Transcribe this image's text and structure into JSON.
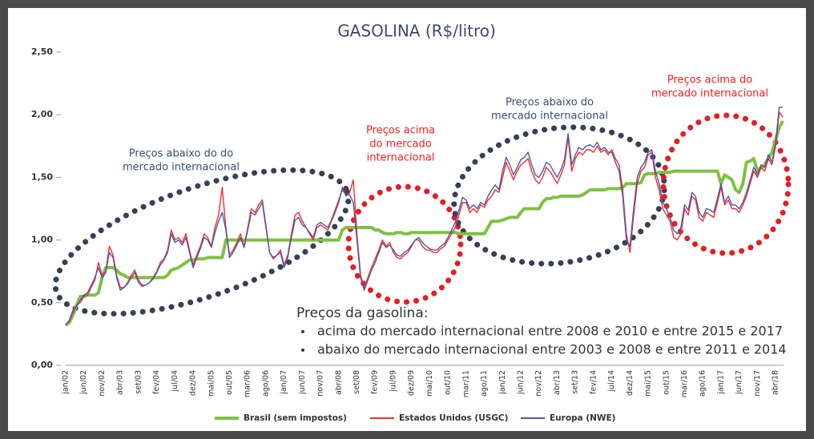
{
  "chart_data": {
    "type": "line",
    "title": "GASOLINA (R$/litro)",
    "categories": [
      "jan/02",
      null,
      null,
      null,
      null,
      "jun/02",
      null,
      null,
      null,
      null,
      "nov/02",
      null,
      null,
      null,
      null,
      "abr/03",
      null,
      null,
      null,
      null,
      "set/03",
      null,
      null,
      null,
      null,
      "fev/04",
      null,
      null,
      null,
      null,
      "jul/04",
      null,
      null,
      null,
      null,
      "dez/04",
      null,
      null,
      null,
      null,
      "mai/05",
      null,
      null,
      null,
      null,
      "out/05",
      null,
      null,
      null,
      null,
      "mar/06",
      null,
      null,
      null,
      null,
      "ago/06",
      null,
      null,
      null,
      null,
      "jan/07",
      null,
      null,
      null,
      null,
      "jun/07",
      null,
      null,
      null,
      null,
      "nov/07",
      null,
      null,
      null,
      null,
      "abr/08",
      null,
      null,
      null,
      null,
      "set/08",
      null,
      null,
      null,
      null,
      "fev/09",
      null,
      null,
      null,
      null,
      "jul/09",
      null,
      null,
      null,
      null,
      "dez/09",
      null,
      null,
      null,
      null,
      "mai/10",
      null,
      null,
      null,
      null,
      "out/10",
      null,
      null,
      null,
      null,
      "mar/11",
      null,
      null,
      null,
      null,
      "ago/11",
      null,
      null,
      null,
      null,
      "jan/12",
      null,
      null,
      null,
      null,
      "jun/12",
      null,
      null,
      null,
      null,
      "nov/12",
      null,
      null,
      null,
      null,
      "abr/13",
      null,
      null,
      null,
      null,
      "set/13",
      null,
      null,
      null,
      null,
      "fev/14",
      null,
      null,
      null,
      null,
      "jul/14",
      null,
      null,
      null,
      null,
      "dez/14",
      null,
      null,
      null,
      null,
      "mai/15",
      null,
      null,
      null,
      null,
      "out/15",
      null,
      null,
      null,
      null,
      "mar/16",
      null,
      null,
      null,
      null,
      "ago/16",
      null,
      null,
      null,
      null,
      "jan/17",
      null,
      null,
      null,
      null,
      "jun/17",
      null,
      null,
      null,
      null,
      "nov/17",
      null,
      null,
      null,
      null,
      "abr/18",
      null,
      null
    ],
    "series": [
      {
        "name": "Brasil (sem impostos)",
        "color": "#7dc242",
        "width": 4,
        "values": [
          0.32,
          0.34,
          0.4,
          0.48,
          0.55,
          0.55,
          0.56,
          0.56,
          0.56,
          0.58,
          0.7,
          0.78,
          0.78,
          0.78,
          0.76,
          0.73,
          0.72,
          0.7,
          0.7,
          0.7,
          0.7,
          0.7,
          0.7,
          0.7,
          0.7,
          0.7,
          0.7,
          0.7,
          0.72,
          0.76,
          0.77,
          0.78,
          0.8,
          0.82,
          0.84,
          0.84,
          0.85,
          0.85,
          0.85,
          0.86,
          0.86,
          0.86,
          0.86,
          0.86,
          1.0,
          1.0,
          1.0,
          1.0,
          1.0,
          1.0,
          1.0,
          1.0,
          1.0,
          1.0,
          1.0,
          1.0,
          1.0,
          1.0,
          1.0,
          1.0,
          1.0,
          1.0,
          1.0,
          1.0,
          1.0,
          1.0,
          1.0,
          1.0,
          1.0,
          1.0,
          1.0,
          1.0,
          1.0,
          1.0,
          1.0,
          1.0,
          1.08,
          1.1,
          1.1,
          1.1,
          1.1,
          1.1,
          1.1,
          1.1,
          1.1,
          1.08,
          1.08,
          1.06,
          1.05,
          1.05,
          1.05,
          1.06,
          1.06,
          1.05,
          1.05,
          1.06,
          1.06,
          1.06,
          1.06,
          1.06,
          1.06,
          1.06,
          1.06,
          1.06,
          1.06,
          1.06,
          1.06,
          1.06,
          1.05,
          1.05,
          1.05,
          1.05,
          1.05,
          1.05,
          1.05,
          1.05,
          1.1,
          1.15,
          1.15,
          1.15,
          1.16,
          1.17,
          1.18,
          1.18,
          1.18,
          1.22,
          1.25,
          1.25,
          1.25,
          1.25,
          1.25,
          1.3,
          1.33,
          1.33,
          1.34,
          1.34,
          1.35,
          1.35,
          1.35,
          1.35,
          1.35,
          1.35,
          1.36,
          1.38,
          1.4,
          1.4,
          1.4,
          1.4,
          1.4,
          1.41,
          1.41,
          1.41,
          1.41,
          1.42,
          1.45,
          1.45,
          1.45,
          1.45,
          1.46,
          1.52,
          1.53,
          1.53,
          1.53,
          1.54,
          1.54,
          1.54,
          1.54,
          1.55,
          1.55,
          1.55,
          1.55,
          1.55,
          1.55,
          1.55,
          1.55,
          1.55,
          1.55,
          1.55,
          1.55,
          1.55,
          1.45,
          1.52,
          1.5,
          1.48,
          1.4,
          1.38,
          1.45,
          1.62,
          1.63,
          1.65,
          1.55,
          1.58,
          1.6,
          1.65,
          1.7,
          1.8,
          1.9,
          1.95
        ]
      },
      {
        "name": "Estados Unidos (USGC)",
        "color": "#ff2a2a",
        "width": 1.4,
        "values": [
          0.33,
          0.35,
          0.42,
          0.48,
          0.5,
          0.55,
          0.56,
          0.62,
          0.68,
          0.82,
          0.72,
          0.75,
          0.95,
          0.88,
          0.72,
          0.62,
          0.62,
          0.66,
          0.72,
          0.76,
          0.68,
          0.64,
          0.64,
          0.66,
          0.7,
          0.75,
          0.82,
          0.85,
          0.92,
          1.08,
          1.0,
          1.02,
          0.98,
          1.05,
          0.92,
          0.8,
          0.88,
          0.95,
          1.05,
          1.02,
          0.95,
          1.1,
          1.2,
          1.42,
          1.1,
          0.88,
          0.92,
          0.98,
          1.05,
          0.95,
          1.1,
          1.25,
          1.22,
          1.28,
          1.32,
          1.12,
          0.9,
          0.85,
          0.88,
          0.92,
          0.8,
          0.88,
          1.05,
          1.2,
          1.22,
          1.15,
          1.1,
          1.05,
          1.0,
          1.1,
          1.12,
          1.1,
          1.08,
          1.15,
          1.22,
          1.3,
          1.42,
          1.35,
          1.38,
          1.48,
          1.05,
          0.72,
          0.62,
          0.7,
          0.78,
          0.85,
          0.92,
          1.0,
          0.95,
          0.98,
          0.9,
          0.86,
          0.85,
          0.88,
          0.9,
          0.95,
          1.0,
          1.0,
          0.95,
          0.92,
          0.92,
          0.9,
          0.9,
          0.93,
          0.95,
          1.0,
          1.05,
          1.1,
          1.2,
          1.3,
          1.3,
          1.22,
          1.25,
          1.22,
          1.28,
          1.26,
          1.32,
          1.35,
          1.4,
          1.38,
          1.5,
          1.62,
          1.55,
          1.48,
          1.55,
          1.6,
          1.62,
          1.65,
          1.55,
          1.48,
          1.45,
          1.5,
          1.58,
          1.55,
          1.5,
          1.45,
          1.52,
          1.6,
          1.82,
          1.55,
          1.65,
          1.7,
          1.68,
          1.72,
          1.72,
          1.7,
          1.75,
          1.7,
          1.72,
          1.68,
          1.72,
          1.65,
          1.6,
          1.4,
          1.05,
          0.9,
          1.2,
          1.45,
          1.55,
          1.58,
          1.68,
          1.7,
          1.5,
          1.4,
          1.25,
          1.2,
          1.15,
          1.02,
          1.0,
          1.05,
          1.25,
          1.2,
          1.35,
          1.32,
          1.18,
          1.15,
          1.22,
          1.2,
          1.18,
          1.3,
          1.42,
          1.28,
          1.32,
          1.25,
          1.25,
          1.22,
          1.28,
          1.35,
          1.45,
          1.55,
          1.5,
          1.58,
          1.55,
          1.65,
          1.6,
          1.75,
          2.02,
          1.98
        ]
      },
      {
        "name": "Europa (NWE)",
        "color": "#4a5aa8",
        "width": 1.4,
        "values": [
          0.32,
          0.36,
          0.44,
          0.47,
          0.52,
          0.56,
          0.58,
          0.64,
          0.7,
          0.78,
          0.7,
          0.74,
          0.9,
          0.86,
          0.7,
          0.6,
          0.62,
          0.65,
          0.7,
          0.74,
          0.66,
          0.63,
          0.64,
          0.66,
          0.69,
          0.74,
          0.8,
          0.84,
          0.9,
          1.05,
          0.98,
          1.0,
          0.96,
          1.02,
          0.9,
          0.78,
          0.86,
          0.93,
          1.02,
          1.0,
          0.94,
          1.06,
          1.15,
          1.22,
          1.08,
          0.86,
          0.9,
          0.96,
          1.02,
          0.94,
          1.08,
          1.22,
          1.2,
          1.25,
          1.3,
          1.1,
          0.9,
          0.86,
          0.88,
          0.9,
          0.78,
          0.86,
          1.02,
          1.16,
          1.18,
          1.12,
          1.1,
          1.06,
          1.02,
          1.12,
          1.14,
          1.12,
          1.1,
          1.16,
          1.24,
          1.32,
          1.4,
          1.36,
          1.36,
          1.3,
          1.0,
          0.7,
          0.6,
          0.68,
          0.76,
          0.82,
          0.9,
          0.98,
          0.94,
          0.96,
          0.92,
          0.88,
          0.87,
          0.9,
          0.92,
          0.96,
          1.0,
          1.02,
          0.98,
          0.95,
          0.93,
          0.92,
          0.92,
          0.95,
          0.97,
          1.02,
          1.08,
          1.14,
          1.24,
          1.34,
          1.32,
          1.25,
          1.28,
          1.25,
          1.3,
          1.28,
          1.35,
          1.4,
          1.44,
          1.4,
          1.55,
          1.66,
          1.6,
          1.52,
          1.58,
          1.64,
          1.66,
          1.7,
          1.6,
          1.52,
          1.5,
          1.55,
          1.62,
          1.6,
          1.55,
          1.5,
          1.56,
          1.64,
          1.85,
          1.6,
          1.68,
          1.74,
          1.72,
          1.75,
          1.76,
          1.74,
          1.78,
          1.72,
          1.74,
          1.7,
          1.7,
          1.62,
          1.55,
          1.35,
          1.0,
          0.95,
          1.25,
          1.5,
          1.58,
          1.62,
          1.7,
          1.72,
          1.55,
          1.45,
          1.3,
          1.25,
          1.18,
          1.08,
          1.05,
          1.1,
          1.28,
          1.24,
          1.38,
          1.35,
          1.22,
          1.18,
          1.25,
          1.24,
          1.22,
          1.33,
          1.45,
          1.3,
          1.35,
          1.28,
          1.28,
          1.25,
          1.3,
          1.38,
          1.48,
          1.58,
          1.52,
          1.6,
          1.58,
          1.68,
          1.62,
          1.78,
          2.06,
          2.06
        ]
      }
    ],
    "ylim": [
      0,
      2.5
    ],
    "yticks": [
      {
        "value": 0,
        "label": "0,00"
      },
      {
        "value": 0.5,
        "label": "0,50"
      },
      {
        "value": 1,
        "label": "1,00"
      },
      {
        "value": 1.5,
        "label": "1,50"
      },
      {
        "value": 2,
        "label": "2,00"
      },
      {
        "value": 2.5,
        "label": "2,50"
      }
    ],
    "annotations": [
      {
        "lines": [
          "Preços abaixo do do",
          "mercado internacional"
        ],
        "color": "#344e7a"
      },
      {
        "lines": [
          "Preços acima",
          "do mercado",
          "internacional"
        ],
        "color": "#ff1a1a"
      },
      {
        "lines": [
          "Preços abaixo do",
          "mercado internacional"
        ],
        "color": "#344e7a"
      },
      {
        "lines": [
          "Preços acima do",
          "mercado internacional"
        ],
        "color": "#ff1a1a"
      }
    ],
    "note": {
      "title": "Preços da gasolina:",
      "items": [
        "acima do mercado internacional entre 2008 e 2010 e entre 2015 e 2017",
        "abaixo do mercado internacional entre 2003 e 2008 e entre 2011 e 2014"
      ]
    }
  }
}
